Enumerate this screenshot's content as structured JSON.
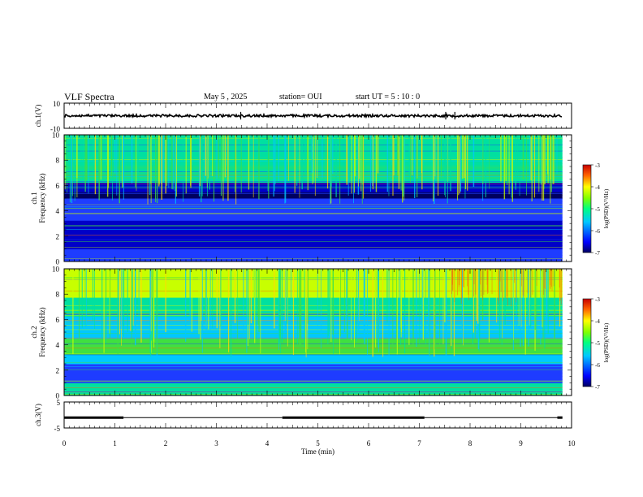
{
  "header": {
    "title": "VLF Spectra",
    "date": "May 5 , 2025",
    "station": "station= OUI",
    "start": "start UT = 5 : 10 : 0"
  },
  "chart_data": [
    {
      "type": "line",
      "panel": "ch1-waveform",
      "ylabel": "ch.1(V)",
      "ylim": [
        -10,
        10
      ],
      "yticks": [
        "10",
        "-10"
      ],
      "xlim": [
        0,
        10
      ],
      "x": [
        0,
        9.82
      ],
      "baseline": 0,
      "note_spikes_x": [
        3.48,
        7.52,
        7.7
      ]
    },
    {
      "type": "heatmap",
      "panel": "ch1-spectrogram",
      "ylabel": "ch.1\nFrequency (kHz)",
      "ylim": [
        0,
        10
      ],
      "yticks": [
        "0",
        "2",
        "4",
        "6",
        "8",
        "10"
      ],
      "xlim": [
        0,
        10
      ],
      "data_extent_min": 9.82,
      "colorbar": {
        "label": "log(PSD)(V²/Hz)",
        "range": [
          -7,
          -3
        ],
        "ticks": [
          "-3",
          "-4",
          "-5",
          "-6",
          "-7"
        ]
      }
    },
    {
      "type": "heatmap",
      "panel": "ch2-spectrogram",
      "ylabel": "ch.2\nFrequency (kHz)",
      "ylim": [
        0,
        10
      ],
      "yticks": [
        "0",
        "2",
        "4",
        "6",
        "8",
        "10"
      ],
      "xlim": [
        0,
        10
      ],
      "data_extent_min": 9.82,
      "colorbar": {
        "label": "log(PSD)(V²/Hz)",
        "range": [
          -7,
          -3
        ],
        "ticks": [
          "-3",
          "-4",
          "-5",
          "-6",
          "-7"
        ]
      }
    },
    {
      "type": "line",
      "panel": "ch3-signal",
      "ylabel": "ch.3(V)",
      "ylim": [
        -5,
        5
      ],
      "yticks": [
        "5",
        "-5"
      ],
      "xlim": [
        0,
        10
      ],
      "segments": [
        {
          "x": [
            0,
            1.17
          ],
          "y": -1
        },
        {
          "x": [
            4.3,
            7.1
          ],
          "y": -1
        },
        {
          "x": [
            9.72,
            9.82
          ],
          "y": -1
        }
      ],
      "thin_segments": [
        {
          "x": [
            1.17,
            4.3
          ],
          "y": -1
        },
        {
          "x": [
            7.1,
            9.72
          ],
          "y": -1
        }
      ]
    }
  ],
  "xaxis": {
    "label": "Time (min)",
    "ticks": [
      "0",
      "1",
      "2",
      "3",
      "4",
      "5",
      "6",
      "7",
      "8",
      "9",
      "10"
    ]
  },
  "colors": {
    "colormap": [
      "#000060",
      "#0000c8",
      "#1e3cff",
      "#00c8ff",
      "#00e0a0",
      "#40e040",
      "#c8ff00",
      "#ffdc00",
      "#ff6400",
      "#c80000"
    ]
  }
}
